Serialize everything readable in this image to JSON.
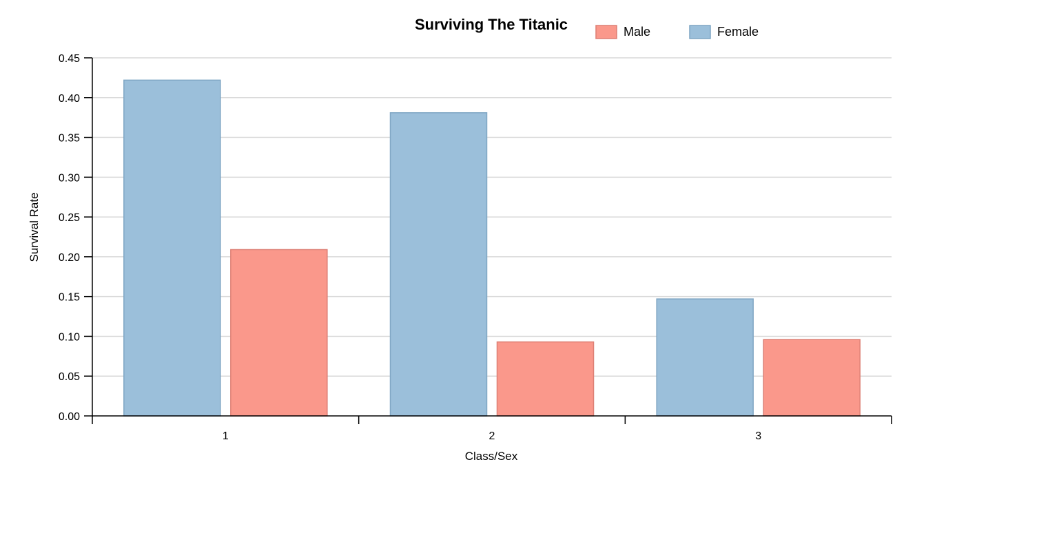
{
  "chart_data": {
    "type": "bar",
    "title": "Surviving The Titanic",
    "xlabel": "Class/Sex",
    "ylabel": "Survival Rate",
    "categories": [
      "1",
      "2",
      "3"
    ],
    "series": [
      {
        "name": "Female",
        "color": "#9bbfda",
        "stroke": "#7fa6c4",
        "values": [
          0.422,
          0.381,
          0.147
        ]
      },
      {
        "name": "Male",
        "color": "#fa988b",
        "stroke": "#dd7f74",
        "values": [
          0.209,
          0.093,
          0.096
        ]
      }
    ],
    "legend_order": [
      "Male",
      "Female"
    ],
    "ylim": [
      0,
      0.45
    ],
    "yticks": [
      "0.00",
      "0.05",
      "0.10",
      "0.15",
      "0.20",
      "0.25",
      "0.30",
      "0.35",
      "0.40",
      "0.45"
    ],
    "grid": true,
    "legend_position": "top"
  }
}
